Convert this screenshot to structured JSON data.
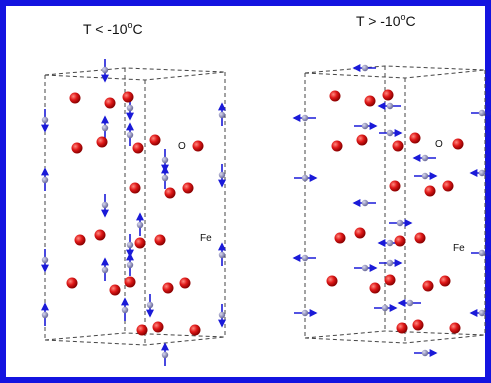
{
  "panels": [
    {
      "title": {
        "text": "T < -10",
        "sup": "o",
        "unit": "C"
      },
      "labels": {
        "oxygen": "O",
        "iron": "Fe"
      }
    },
    {
      "title": {
        "text": "T > -10",
        "sup": "o",
        "unit": "C"
      },
      "labels": {
        "oxygen": "O",
        "iron": "Fe"
      }
    }
  ]
}
